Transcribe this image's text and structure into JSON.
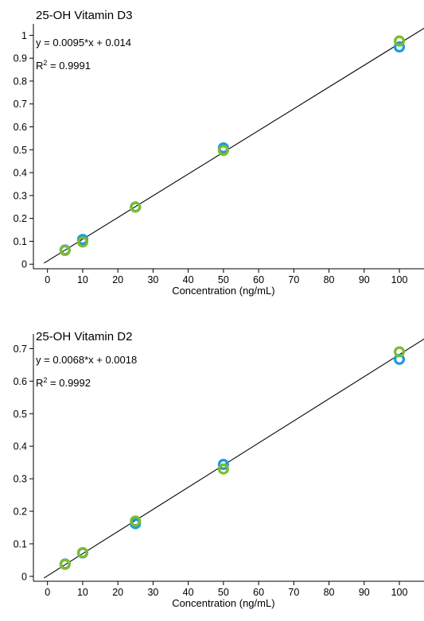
{
  "colors": {
    "series_blue": "#1a9be0",
    "series_green": "#7dbb2f",
    "axis": "#000000"
  },
  "chart_data": [
    {
      "type": "scatter",
      "title": "25-OH Vitamin D3",
      "equation": "y = 0.0095*x  + 0.014",
      "r2_label": "R",
      "r2_sup": "2",
      "r2_value": " = 0.9991",
      "xlabel": "Concentration (ng/mL)",
      "ylabel": "",
      "xlim": [
        -4,
        107
      ],
      "ylim": [
        -0.02,
        1.05
      ],
      "xticks": [
        0,
        10,
        20,
        30,
        40,
        50,
        60,
        70,
        80,
        90,
        100
      ],
      "xtick_labels": [
        "0",
        "10",
        "20",
        "30",
        "40",
        "50",
        "60",
        "70",
        "80",
        "90",
        "100"
      ],
      "yticks": [
        0,
        0.1,
        0.2,
        0.3,
        0.4,
        0.5,
        0.6,
        0.7,
        0.8,
        0.9,
        1
      ],
      "ytick_labels": [
        "0",
        "0.1",
        "0.2",
        "0.3",
        "0.4",
        "0.5",
        "0.6",
        "0.7",
        "0.8",
        "0.9",
        "1"
      ],
      "fit": {
        "slope": 0.0095,
        "intercept": 0.014,
        "x_range": [
          -1,
          108
        ]
      },
      "series": [
        {
          "color": "#1a9be0",
          "x": [
            5,
            10,
            25,
            50,
            100
          ],
          "y": [
            0.062,
            0.108,
            0.25,
            0.508,
            0.949
          ]
        },
        {
          "color": "#7dbb2f",
          "x": [
            5,
            10,
            25,
            50,
            100
          ],
          "y": [
            0.06,
            0.097,
            0.249,
            0.497,
            0.975
          ]
        }
      ]
    },
    {
      "type": "scatter",
      "title": "25-OH Vitamin D2",
      "equation": "y = 0.0068*x  + 0.0018",
      "r2_label": "R",
      "r2_sup": "2",
      "r2_value": " = 0.9992",
      "xlabel": "Concentration (ng/mL)",
      "ylabel": "",
      "xlim": [
        -4,
        107
      ],
      "ylim": [
        -0.015,
        0.745
      ],
      "xticks": [
        0,
        10,
        20,
        30,
        40,
        50,
        60,
        70,
        80,
        90,
        100
      ],
      "xtick_labels": [
        "0",
        "10",
        "20",
        "30",
        "40",
        "50",
        "60",
        "70",
        "80",
        "90",
        "100"
      ],
      "yticks": [
        0,
        0.1,
        0.2,
        0.3,
        0.4,
        0.5,
        0.6,
        0.7
      ],
      "ytick_labels": [
        "0",
        "0.1",
        "0.2",
        "0.3",
        "0.4",
        "0.5",
        "0.6",
        "0.7"
      ],
      "fit": {
        "slope": 0.0068,
        "intercept": 0.0018,
        "x_range": [
          -1,
          108
        ]
      },
      "series": [
        {
          "color": "#1a9be0",
          "x": [
            5,
            10,
            25,
            50,
            100
          ],
          "y": [
            0.038,
            0.072,
            0.162,
            0.344,
            0.667
          ]
        },
        {
          "color": "#7dbb2f",
          "x": [
            5,
            10,
            25,
            50,
            100
          ],
          "y": [
            0.037,
            0.073,
            0.17,
            0.33,
            0.69
          ]
        }
      ]
    }
  ]
}
